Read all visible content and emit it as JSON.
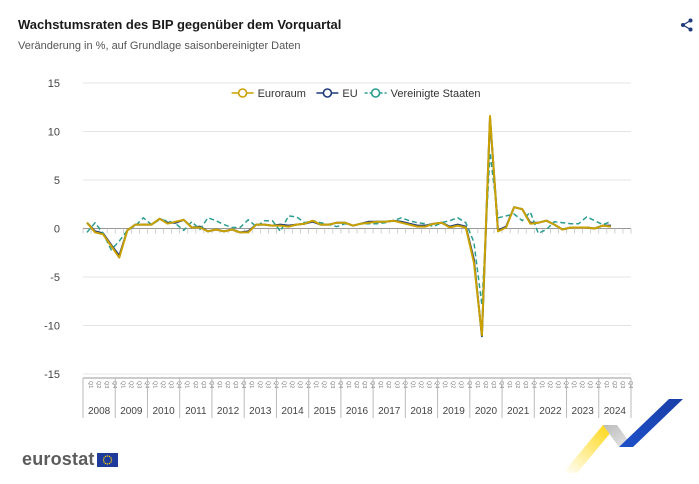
{
  "header": {
    "title": "Wachstumsraten des BIP gegenüber dem Vorquartal",
    "subtitle": "Veränderung in %, auf Grundlage saisonbereinigter Daten"
  },
  "icons": {
    "share": "share-icon"
  },
  "branding": {
    "logo_text": "eurostat"
  },
  "chart_data": {
    "type": "line",
    "ylim": [
      -15,
      15
    ],
    "yticks": [
      15,
      10,
      5,
      0,
      -5,
      -10,
      -15
    ],
    "grid": true,
    "legend_position": "top",
    "quarter_labels": [
      "Q1",
      "Q2",
      "Q3",
      "Q4"
    ],
    "years": [
      "2008",
      "2009",
      "2010",
      "2011",
      "2012",
      "2013",
      "2014",
      "2015",
      "2016",
      "2017",
      "2018",
      "2019",
      "2020",
      "2021",
      "2022",
      "2023",
      "2024"
    ],
    "quarters_per_year": 4,
    "series": [
      {
        "name": "Euroraum",
        "color": "#c9a100",
        "style": "solid",
        "values": [
          0.6,
          -0.4,
          -0.6,
          -1.8,
          -3.0,
          -0.2,
          0.4,
          0.4,
          0.4,
          1.0,
          0.5,
          0.7,
          0.9,
          0.1,
          0.1,
          -0.3,
          -0.1,
          -0.3,
          -0.1,
          -0.4,
          -0.4,
          0.4,
          0.4,
          0.3,
          0.3,
          0.2,
          0.4,
          0.5,
          0.8,
          0.4,
          0.4,
          0.6,
          0.6,
          0.3,
          0.5,
          0.6,
          0.7,
          0.7,
          0.8,
          0.6,
          0.4,
          0.2,
          0.2,
          0.5,
          0.6,
          0.1,
          0.3,
          0.1,
          -3.5,
          -11.0,
          11.6,
          -0.3,
          0.1,
          2.2,
          2.0,
          0.5,
          0.6,
          0.8,
          0.4,
          -0.1,
          0.1,
          0.1,
          0.1,
          0.0,
          0.3,
          0.2
        ]
      },
      {
        "name": "EU",
        "color": "#1e3a7a",
        "style": "solid",
        "values": [
          0.6,
          -0.3,
          -0.5,
          -1.7,
          -2.8,
          -0.2,
          0.4,
          0.4,
          0.4,
          1.0,
          0.6,
          0.6,
          0.9,
          0.1,
          0.2,
          -0.3,
          -0.1,
          -0.3,
          -0.1,
          -0.4,
          -0.3,
          0.4,
          0.4,
          0.3,
          0.4,
          0.3,
          0.4,
          0.5,
          0.7,
          0.4,
          0.4,
          0.6,
          0.6,
          0.3,
          0.5,
          0.7,
          0.7,
          0.7,
          0.8,
          0.7,
          0.5,
          0.3,
          0.3,
          0.5,
          0.6,
          0.2,
          0.4,
          0.2,
          -3.2,
          -11.1,
          11.4,
          -0.2,
          0.2,
          2.2,
          2.0,
          0.6,
          0.6,
          0.8,
          0.4,
          -0.1,
          0.1,
          0.1,
          0.1,
          0.0,
          0.3,
          0.3
        ]
      },
      {
        "name": "Vereinigte Staaten",
        "color": "#2a9d8f",
        "style": "dashed",
        "values": [
          -0.4,
          0.6,
          -0.5,
          -2.2,
          -1.3,
          -0.2,
          0.3,
          1.1,
          0.4,
          0.9,
          0.8,
          0.5,
          -0.2,
          0.7,
          -0.1,
          1.1,
          0.8,
          0.4,
          0.1,
          0.1,
          0.9,
          0.2,
          0.8,
          0.8,
          -0.3,
          1.3,
          1.2,
          0.6,
          0.8,
          0.6,
          0.4,
          0.2,
          0.5,
          0.3,
          0.5,
          0.5,
          0.5,
          0.6,
          0.8,
          1.1,
          0.8,
          0.6,
          0.5,
          0.2,
          0.6,
          0.8,
          1.1,
          0.6,
          -1.4,
          -7.9,
          7.8,
          1.1,
          1.3,
          1.5,
          0.8,
          1.7,
          -0.5,
          -0.1,
          0.7,
          0.6,
          0.5,
          0.5,
          1.2,
          0.8,
          0.4,
          0.7
        ]
      }
    ]
  }
}
